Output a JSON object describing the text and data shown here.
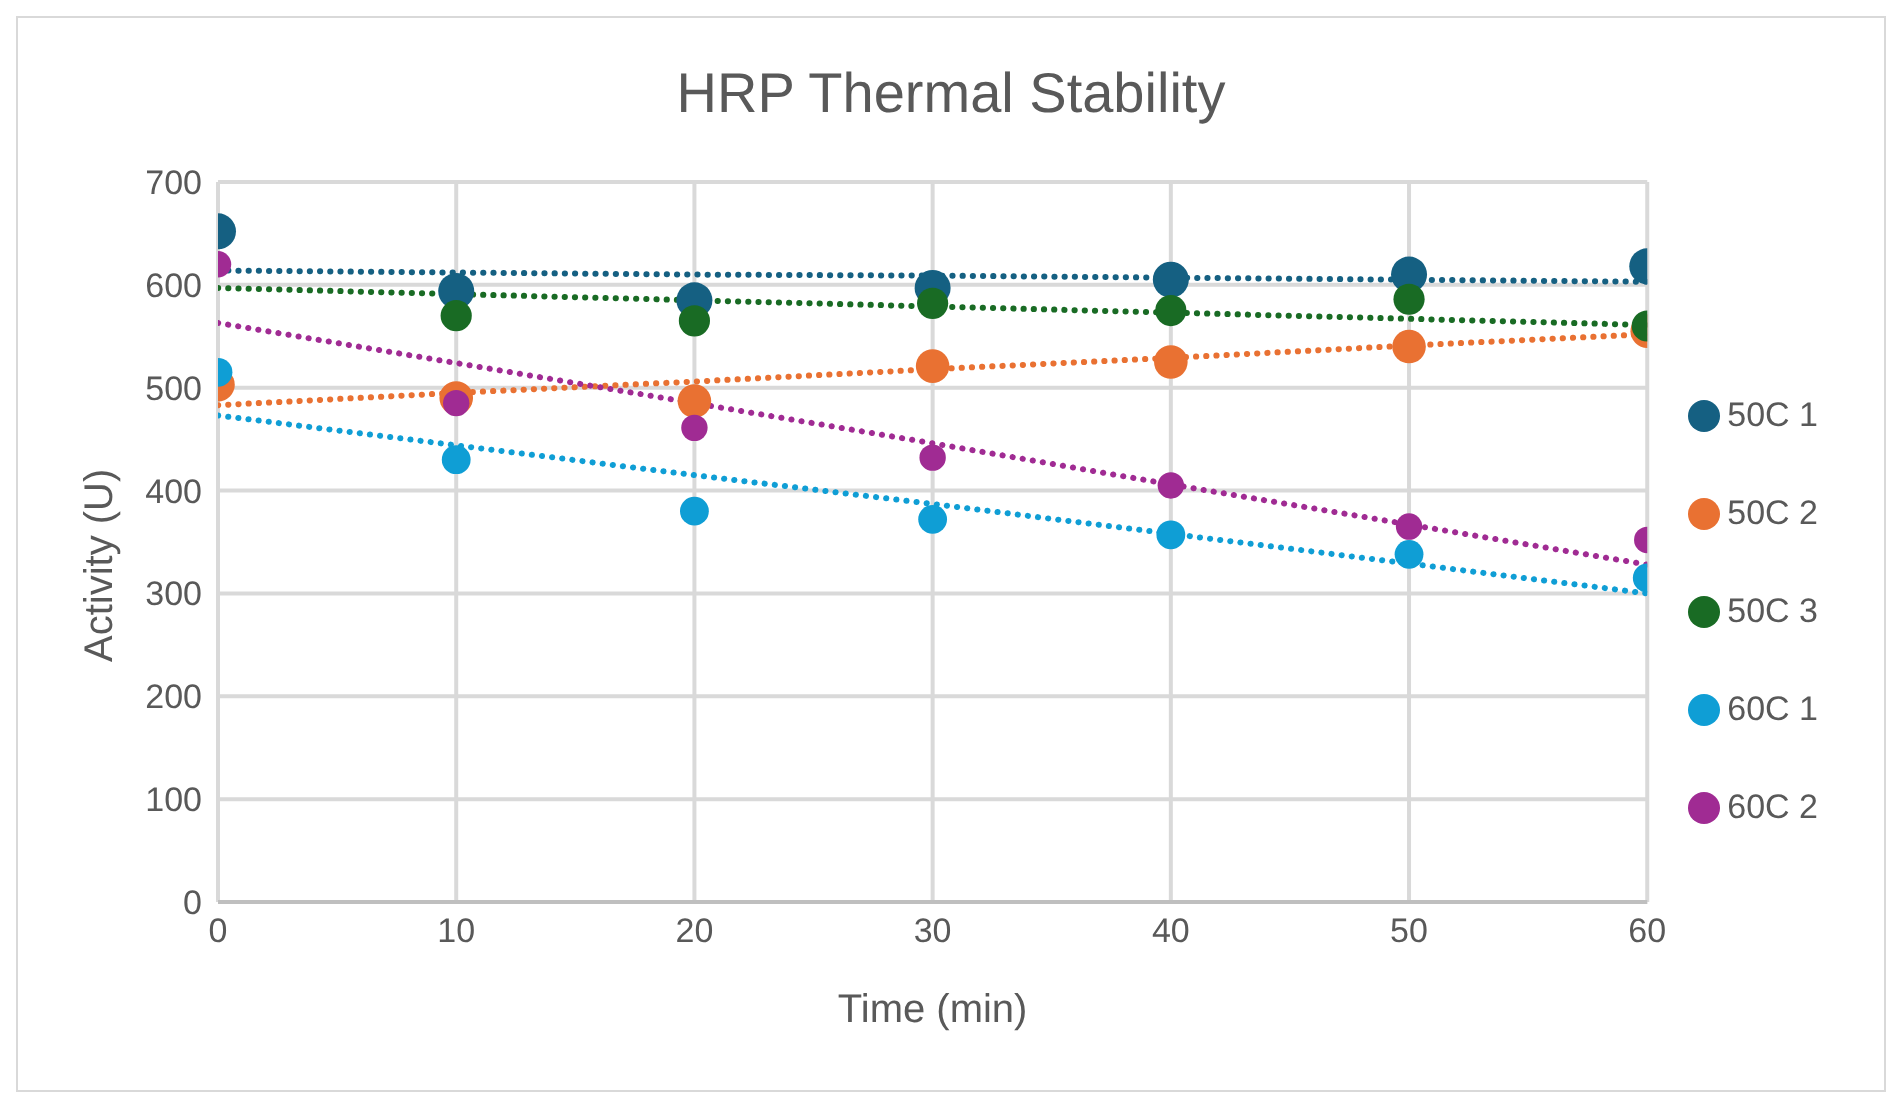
{
  "chart_data": {
    "type": "scatter",
    "title": "HRP Thermal Stability",
    "xlabel": "Time (min)",
    "ylabel": "Activity (U)",
    "x": [
      0,
      10,
      20,
      30,
      40,
      50,
      60
    ],
    "series": [
      {
        "name": "50C 1",
        "color": "#156082",
        "values": [
          652,
          594,
          585,
          597,
          605,
          610,
          618
        ]
      },
      {
        "name": "50C 2",
        "color": "#e97132",
        "values": [
          503,
          490,
          487,
          521,
          525,
          540,
          555
        ]
      },
      {
        "name": "50C 3",
        "color": "#196b24",
        "values": [
          null,
          570,
          565,
          582,
          575,
          586,
          560
        ]
      },
      {
        "name": "60C 1",
        "color": "#0f9ed5",
        "values": [
          515,
          430,
          380,
          372,
          357,
          338,
          315
        ]
      },
      {
        "name": "60C 2",
        "color": "#a02b93",
        "values": [
          620,
          485,
          461,
          432,
          405,
          365,
          352
        ]
      },
      {
        "type": "line",
        "color": "#156082",
        "values": [
          614,
          612,
          610,
          609,
          607,
          605,
          603
        ],
        "line_style": "dotted",
        "marker": "none"
      },
      {
        "type": "line",
        "color": "#e97132",
        "values": [
          483,
          495,
          506,
          518,
          529,
          541,
          552
        ],
        "line_style": "dotted",
        "marker": "none"
      },
      {
        "type": "line",
        "color": "#196b24",
        "values": [
          597,
          591,
          585,
          579,
          573,
          567,
          561
        ],
        "line_style": "dotted",
        "marker": "none"
      },
      {
        "type": "line",
        "color": "#0f9ed5",
        "values": [
          473,
          444,
          415,
          387,
          358,
          329,
          300
        ],
        "line_style": "dotted",
        "marker": "none"
      },
      {
        "type": "line",
        "color": "#a02b93",
        "values": [
          563,
          524,
          485,
          446,
          406,
          367,
          328
        ],
        "line_style": "dotted",
        "marker": "none"
      }
    ],
    "xlim": [
      0,
      60
    ],
    "xticks": [
      0,
      10,
      20,
      30,
      40,
      50,
      60
    ],
    "ylim": [
      0,
      700
    ],
    "yticks": [
      0,
      100,
      200,
      300,
      400,
      500,
      600,
      700
    ],
    "grid": true,
    "legend": "right"
  }
}
